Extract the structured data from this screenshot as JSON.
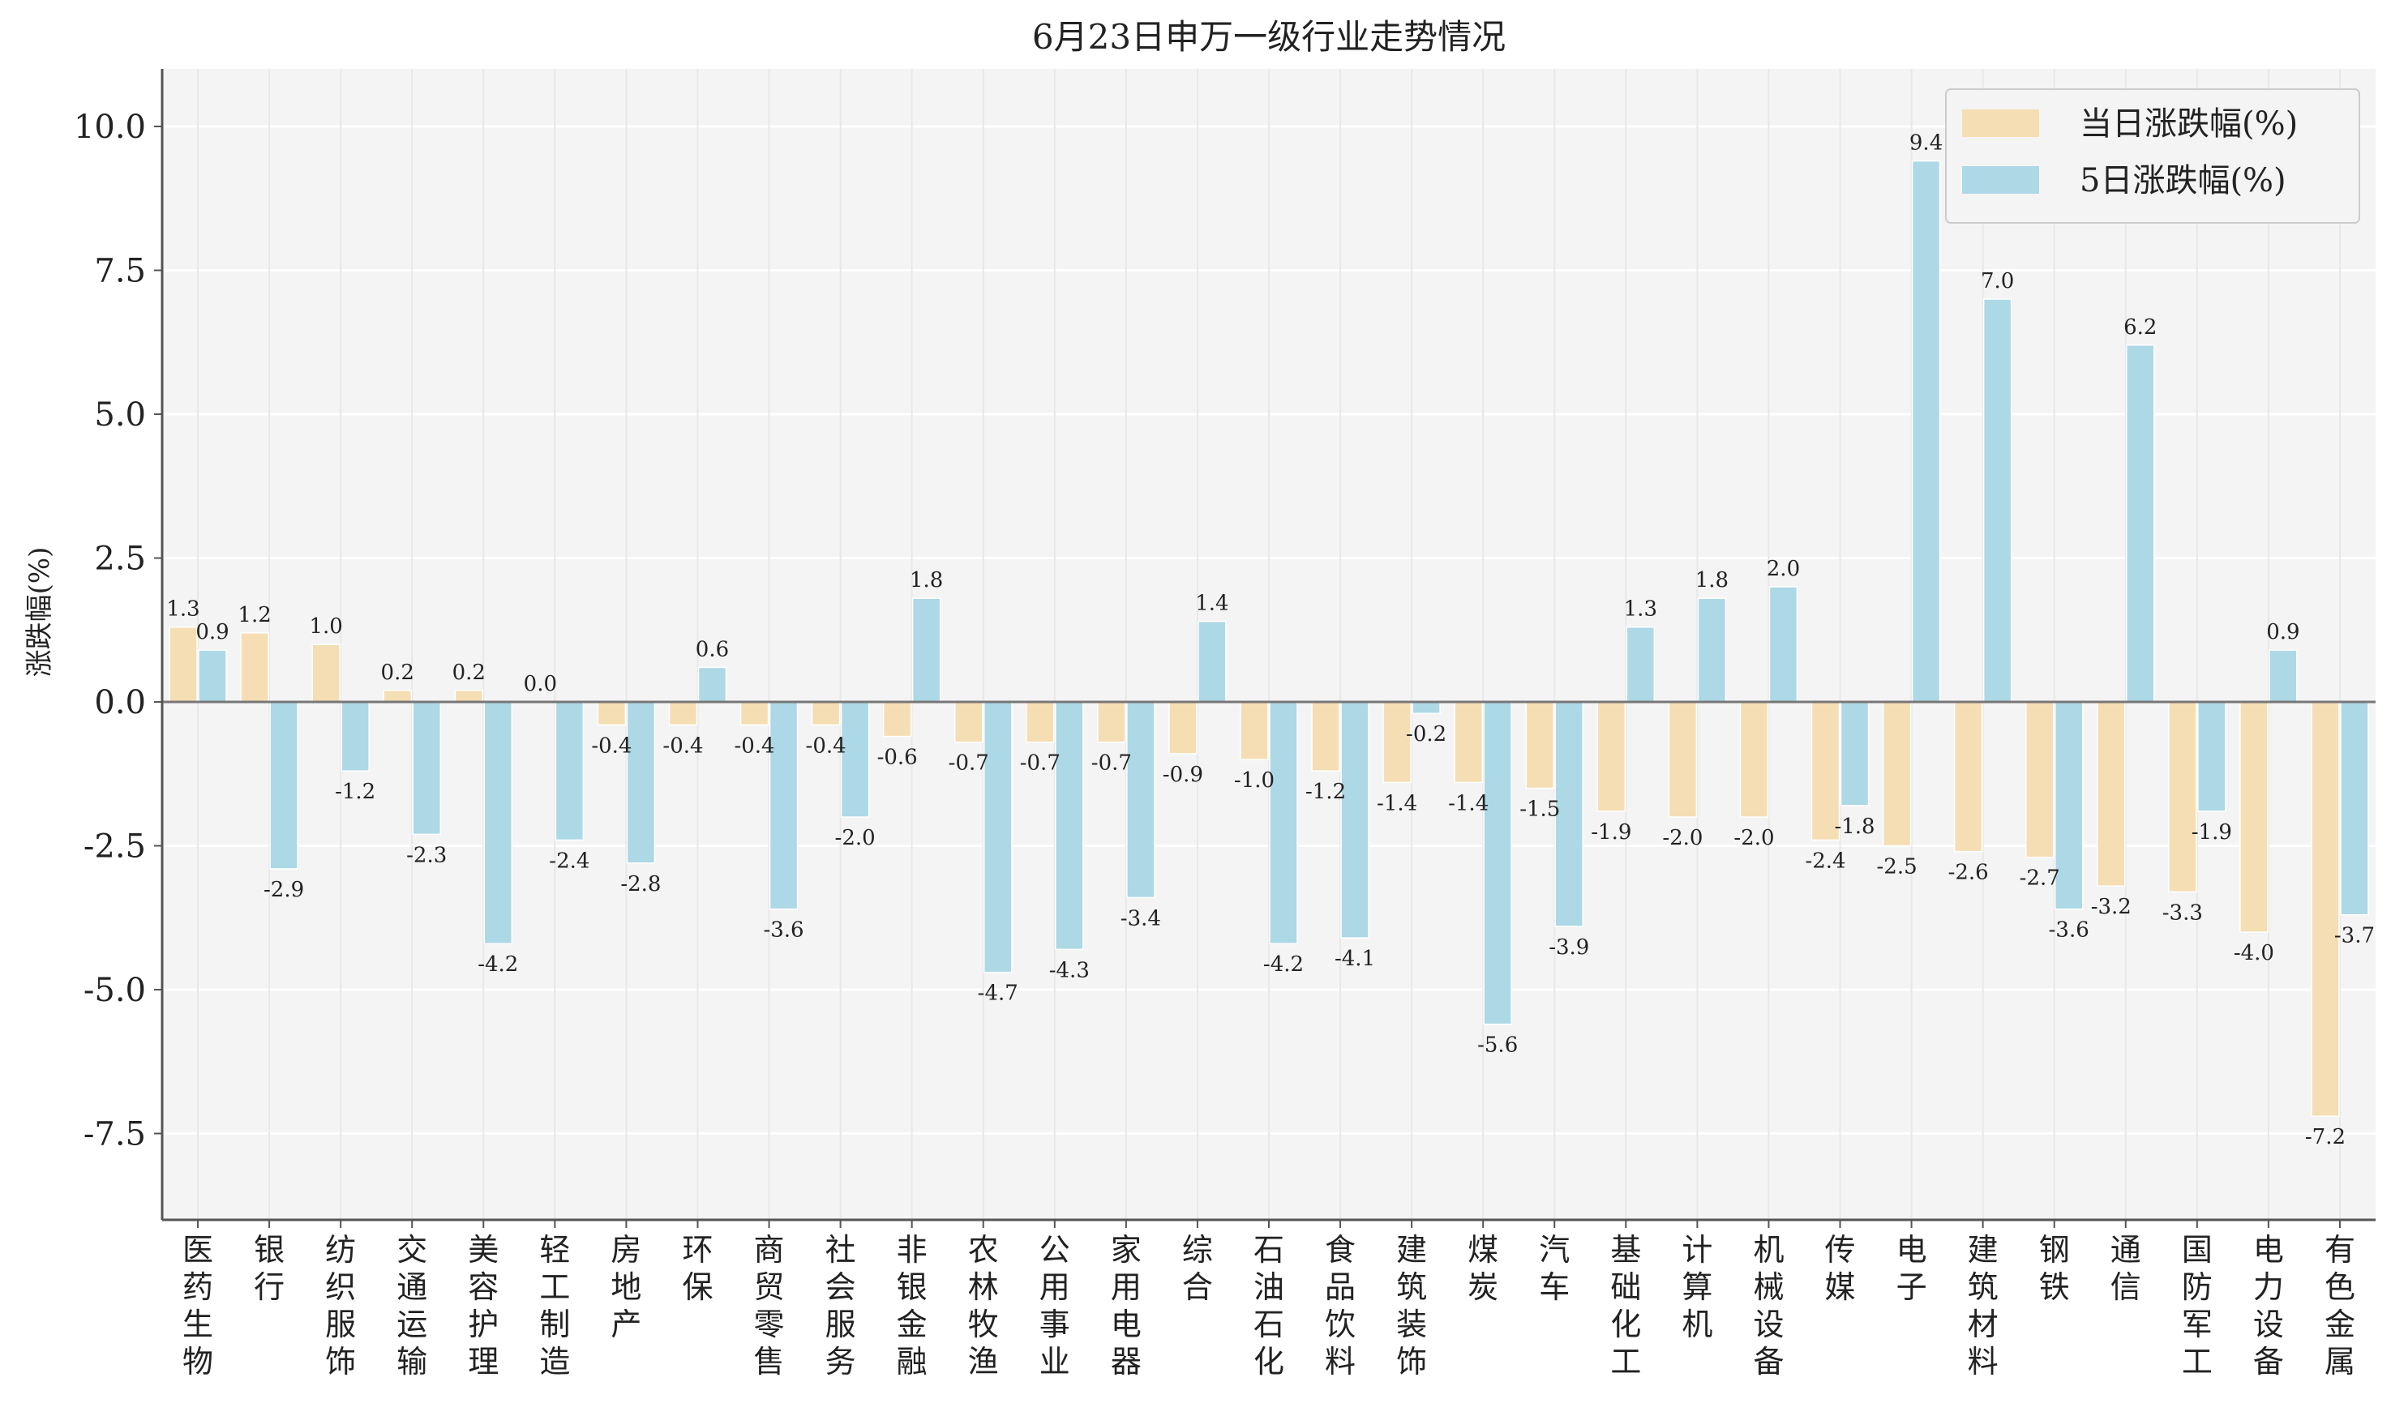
{
  "chart_data": {
    "type": "bar",
    "title": "6月23日申万一级行业走势情况",
    "xlabel": "",
    "ylabel": "涨跌幅(%)",
    "ylim": [
      -9.0,
      11.0
    ],
    "yticks": [
      "10.0",
      "7.5",
      "5.0",
      "2.5",
      "0.0",
      "-2.5",
      "-5.0",
      "-7.5"
    ],
    "ytick_values": [
      10.0,
      7.5,
      5.0,
      2.5,
      0.0,
      -2.5,
      -5.0,
      -7.5
    ],
    "grid": true,
    "legend_position": "top-right",
    "categories": [
      "医药生物",
      "银行",
      "纺织服饰",
      "交通运输",
      "美容护理",
      "轻工制造",
      "房地产",
      "环保",
      "商贸零售",
      "社会服务",
      "非银金融",
      "农林牧渔",
      "公用事业",
      "家用电器",
      "综合",
      "石油石化",
      "食品饮料",
      "建筑装饰",
      "煤炭",
      "汽车",
      "基础化工",
      "计算机",
      "机械设备",
      "传媒",
      "电子",
      "建筑材料",
      "钢铁",
      "通信",
      "国防军工",
      "电力设备",
      "有色金属"
    ],
    "series": [
      {
        "name": "当日涨跌幅(%)",
        "color": "#f5deb3",
        "values": [
          1.3,
          1.2,
          1.0,
          0.2,
          0.2,
          0.0,
          -0.4,
          -0.4,
          -0.4,
          -0.4,
          -0.6,
          -0.7,
          -0.7,
          -0.7,
          -0.9,
          -1.0,
          -1.2,
          -1.4,
          -1.4,
          -1.5,
          -1.9,
          -2.0,
          -2.0,
          -2.4,
          -2.5,
          -2.6,
          -2.7,
          -3.2,
          -3.3,
          -4.0,
          -7.2
        ]
      },
      {
        "name": "5日涨跌幅(%)",
        "color": "#add8e6",
        "values": [
          0.9,
          -2.9,
          -1.2,
          -2.3,
          -4.2,
          -2.4,
          -2.8,
          0.6,
          -3.6,
          -2.0,
          1.8,
          -4.7,
          -4.3,
          -3.4,
          1.4,
          -4.2,
          -4.1,
          -0.2,
          -5.6,
          -3.9,
          1.3,
          1.8,
          2.0,
          -1.8,
          9.4,
          7.0,
          -3.6,
          6.2,
          -1.9,
          0.9,
          -3.7
        ]
      }
    ]
  }
}
